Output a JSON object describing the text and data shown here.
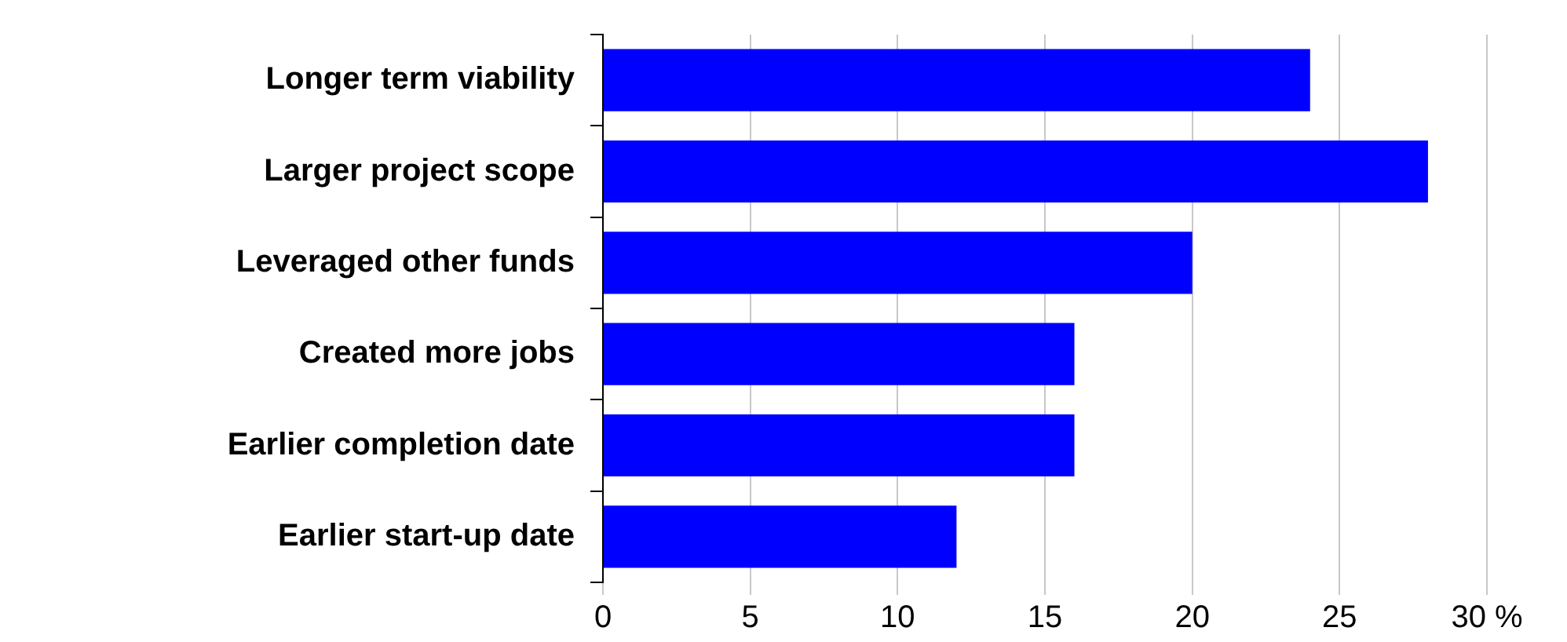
{
  "chart_data": {
    "type": "bar",
    "orientation": "horizontal",
    "categories": [
      "Longer term viability",
      "Larger project scope",
      "Leveraged other funds",
      "Created more jobs",
      "Earlier completion date",
      "Earlier start-up date"
    ],
    "values": [
      24,
      28,
      20,
      16,
      16,
      12
    ],
    "color": "#0000ff",
    "xlim": [
      0,
      30
    ],
    "xticks": [
      0,
      5,
      10,
      15,
      20,
      25,
      {
        "value": 30,
        "label": "30 %"
      }
    ],
    "grid": "x",
    "legend": false
  }
}
